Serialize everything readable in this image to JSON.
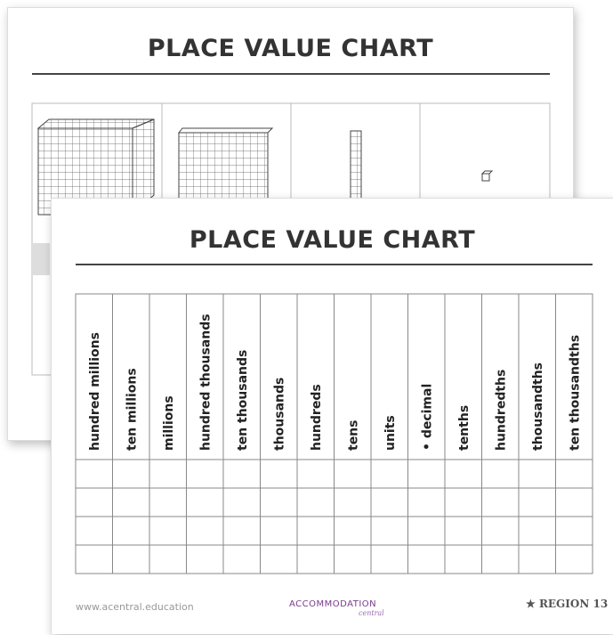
{
  "back_page": {
    "title": "PLACE VALUE CHART"
  },
  "front_page": {
    "title": "PLACE VALUE CHART",
    "table": {
      "headers": [
        "hundred millions",
        "ten millions",
        "millions",
        "hundred thousands",
        "ten thousands",
        "thousands",
        "hundreds",
        "tens",
        "units",
        "• decimal",
        "tenths",
        "hundredths",
        "thousandths",
        "ten thousandths"
      ]
    },
    "footer": {
      "url": "www.acentral.education",
      "logo": "ACCOMMODATION",
      "logo_sub": "central",
      "region": "REGION 13"
    }
  }
}
